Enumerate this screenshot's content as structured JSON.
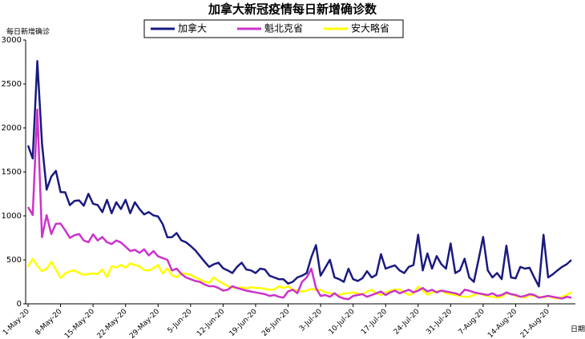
{
  "chart_data": {
    "type": "line",
    "title": "加拿大新冠疫情每日新增确诊数",
    "ylabel": "每日新增确诊",
    "xlabel": "日期",
    "categories": [
      "1-May-20",
      null,
      null,
      null,
      null,
      null,
      null,
      "8-May-20",
      null,
      null,
      null,
      null,
      null,
      null,
      "15-May-20",
      null,
      null,
      null,
      null,
      null,
      null,
      "22-May-20",
      null,
      null,
      null,
      null,
      null,
      null,
      "29-May-20",
      null,
      null,
      null,
      null,
      null,
      null,
      "5-Jun-20",
      null,
      null,
      null,
      null,
      null,
      null,
      "12-Jun-20",
      null,
      null,
      null,
      null,
      null,
      null,
      "19-Jun-20",
      null,
      null,
      null,
      null,
      null,
      null,
      "26-Jun-20",
      null,
      null,
      null,
      null,
      null,
      null,
      "3-Jul-20",
      null,
      null,
      null,
      null,
      null,
      null,
      "10-Jul-20",
      null,
      null,
      null,
      null,
      null,
      null,
      "17-Jul-20",
      null,
      null,
      null,
      null,
      null,
      null,
      "24-Jul-20",
      null,
      null,
      null,
      null,
      null,
      null,
      "31-Jul-20",
      null,
      null,
      null,
      null,
      null,
      null,
      "7-Aug-20",
      null,
      null,
      null,
      null,
      null,
      null,
      "14-Aug-20",
      null,
      null,
      null,
      null,
      null,
      null,
      "21-Aug-20",
      null,
      null,
      null,
      null,
      null
    ],
    "series": [
      {
        "name": "加拿大",
        "color": "#1a1a80",
        "values": [
          1800,
          1653,
          2760,
          1825,
          1298,
          1446,
          1512,
          1271,
          1268,
          1122,
          1170,
          1176,
          1116,
          1251,
          1138,
          1123,
          1043,
          1182,
          1030,
          1155,
          1078,
          1182,
          1030,
          1155,
          1078,
          1017,
          1043,
          1006,
          993,
          906,
          757,
          758,
          805,
          722,
          700,
          658,
          609,
          545,
          480,
          420,
          450,
          468,
          405,
          380,
          350,
          420,
          468,
          390,
          380,
          350,
          400,
          390,
          320,
          300,
          280,
          279,
          230,
          250,
          300,
          320,
          350,
          530,
          668,
          320,
          410,
          501,
          300,
          280,
          250,
          399,
          280,
          260,
          290,
          371,
          300,
          330,
          565,
          400,
          420,
          437,
          380,
          350,
          420,
          441,
          786,
          380,
          573,
          400,
          543,
          450,
          400,
          686,
          350,
          380,
          513,
          300,
          250,
          500,
          760,
          380,
          300,
          350,
          281,
          661,
          300,
          290,
          420,
          400,
          410,
          300,
          198,
          785,
          300,
          336,
          380,
          420,
          450,
          499
        ]
      },
      {
        "name": "魁北克省",
        "color": "#cc33cc",
        "values": [
          1100,
          1010,
          2209,
          758,
          1008,
          794,
          910,
          912,
          836,
          750,
          780,
          793,
          720,
          700,
          790,
          720,
          760,
          700,
          680,
          720,
          697,
          650,
          600,
          614,
          580,
          620,
          550,
          600,
          540,
          520,
          500,
          380,
          400,
          340,
          300,
          280,
          260,
          250,
          220,
          200,
          200,
          180,
          150,
          160,
          200,
          180,
          165,
          150,
          140,
          130,
          120,
          110,
          90,
          100,
          80,
          70,
          142,
          160,
          120,
          250,
          300,
          400,
          180,
          90,
          100,
          80,
          120,
          80,
          60,
          52,
          90,
          100,
          110,
          80,
          100,
          120,
          140,
          100,
          130,
          150,
          120,
          140,
          160,
          130,
          150,
          180,
          140,
          160,
          130,
          150,
          140,
          130,
          120,
          100,
          160,
          150,
          130,
          120,
          110,
          100,
          120,
          90,
          100,
          130,
          110,
          100,
          80,
          90,
          110,
          100,
          70,
          80,
          90,
          80,
          70,
          60,
          80,
          69
        ]
      },
      {
        "name": "安大略省",
        "color": "#ffff00",
        "values": [
          420,
          511,
          434,
          370,
          399,
          477,
          387,
          294,
          346,
          370,
          380,
          350,
          330,
          340,
          345,
          340,
          391,
          304,
          427,
          413,
          441,
          412,
          460,
          440,
          427,
          383,
          380,
          404,
          441,
          344,
          404,
          326,
          300,
          350,
          340,
          330,
          300,
          280,
          250,
          240,
          300,
          260,
          230,
          200,
          184,
          180,
          190,
          173,
          190,
          178,
          180,
          170,
          160,
          163,
          200,
          180,
          200,
          160,
          150,
          140,
          150,
          170,
          157,
          160,
          130,
          120,
          110,
          100,
          118,
          120,
          130,
          116,
          110,
          140,
          160,
          120,
          100,
          130,
          150,
          160,
          164,
          130,
          100,
          120,
          195,
          150,
          103,
          130,
          140,
          150,
          120,
          110,
          100,
          90,
          80,
          80,
          100,
          120,
          100,
          90,
          80,
          70,
          79,
          120,
          110,
          90,
          80,
          70,
          100,
          90,
          80,
          70,
          90,
          70,
          60,
          80,
          100,
          131
        ]
      }
    ],
    "ylim": [
      0,
      3000
    ],
    "yticks": [
      0,
      500,
      1000,
      1500,
      2000,
      2500,
      3000
    ],
    "grid": false
  }
}
